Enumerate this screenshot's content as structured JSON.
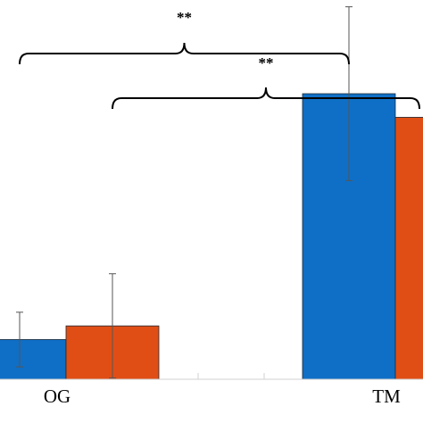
{
  "chart_data": {
    "type": "bar",
    "categories": [
      "OG",
      "TM"
    ],
    "series": [
      {
        "color": "#0f6fc6",
        "values": [
          0.16,
          1.15
        ],
        "errors": [
          0.11,
          0.35
        ]
      },
      {
        "color": "#e04e15",
        "values": [
          0.215,
          1.055
        ],
        "errors": [
          0.21,
          0.55
        ]
      }
    ],
    "ylim": [
      0,
      2.1
    ],
    "significance": [
      {
        "label": "**",
        "from": [
          "OG",
          0
        ],
        "to": [
          "TM",
          0
        ]
      },
      {
        "label": "**",
        "from": [
          "OG",
          1
        ],
        "to": [
          "TM",
          1
        ]
      }
    ],
    "xlabel": "",
    "ylabel": ""
  }
}
